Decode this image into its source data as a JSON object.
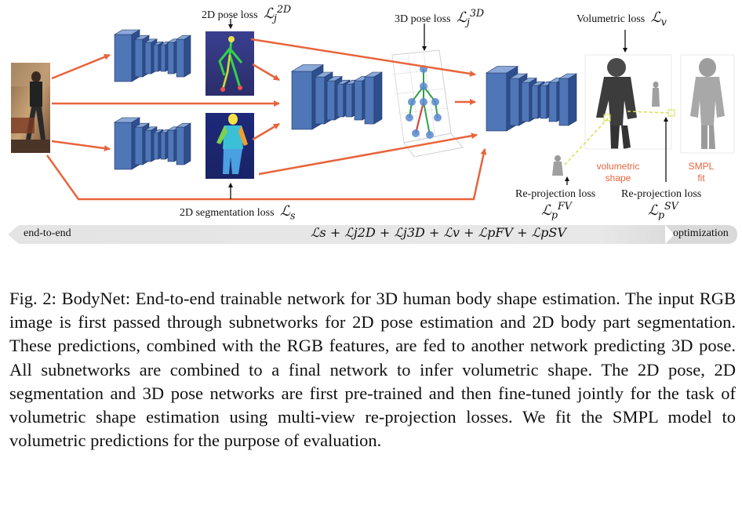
{
  "figure": {
    "labels": {
      "pose2d_loss": "2D pose loss",
      "pose2d_loss_symbol": "ℒ",
      "pose2d_loss_sub": "j",
      "pose2d_loss_sup": "2D",
      "pose3d_loss": "3D pose loss",
      "pose3d_loss_symbol": "ℒ",
      "pose3d_loss_sub": "j",
      "pose3d_loss_sup": "3D",
      "volumetric_loss": "Volumetric loss",
      "volumetric_loss_symbol": "ℒ",
      "volumetric_loss_sub": "v",
      "seg2d_loss": "2D segmentation loss",
      "seg2d_loss_symbol": "ℒ",
      "seg2d_loss_sub": "s",
      "reproj_loss_fv": "Re-projection loss",
      "reproj_fv_symbol": "ℒ",
      "reproj_fv_sub": "p",
      "reproj_fv_sup": "FV",
      "reproj_loss_sv": "Re-projection loss",
      "reproj_sv_symbol": "ℒ",
      "reproj_sv_sub": "p",
      "reproj_sv_sup": "SV",
      "volumetric_shape_line1": "volumetric",
      "volumetric_shape_line2": "shape",
      "smpl_fit_line1": "SMPL",
      "smpl_fit_line2": "fit"
    },
    "band": {
      "left_label": "end-to-end",
      "right_label": "optimization",
      "formula": "ℒs + ℒj2D + ℒj3D + ℒv + ℒpFV + ℒpSV"
    },
    "colors": {
      "arrow": "#e8643c",
      "network_front": "#4f76b7",
      "network_side": "#2e4f8e",
      "network_top": "#8aa8d8",
      "accent_text": "#e8643c",
      "dashed_link": "#d7e04a",
      "band_fill": "#e6e6e6"
    }
  },
  "caption": {
    "prefix": "Fig. 2: ",
    "text": "BodyNet: End-to-end trainable network for 3D human body shape estimation. The input RGB image is first passed through subnetworks for 2D pose estimation and 2D body part segmentation. These predictions, combined with the RGB features, are fed to another network predicting 3D pose. All subnetworks are combined to a final network to infer volumetric shape. The 2D pose, 2D segmentation and 3D pose networks are first pre-trained and then fine-tuned jointly for the task of volumetric shape estimation using multi-view re-projection losses. We fit the SMPL model to volumetric predictions for the purpose of evaluation."
  }
}
